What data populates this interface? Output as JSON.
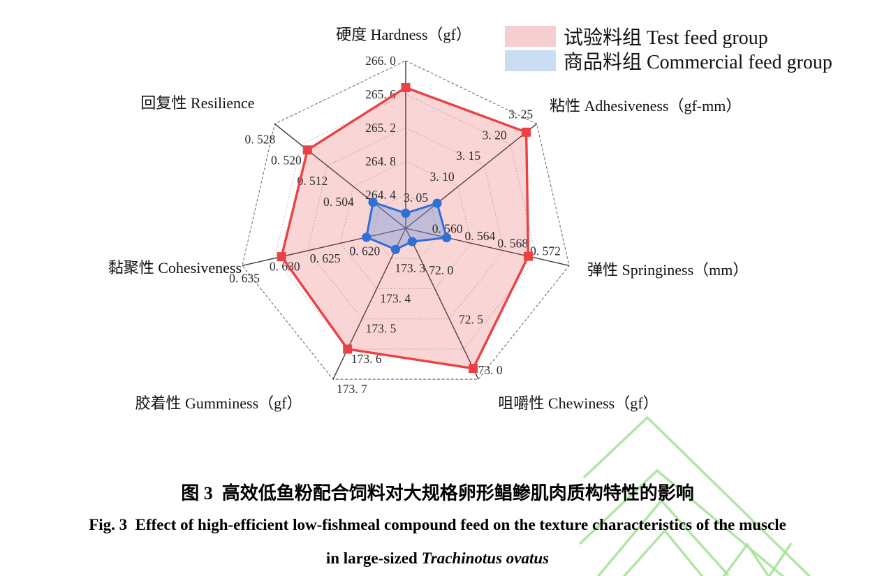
{
  "legend": {
    "position": "top-right",
    "items": [
      {
        "label": "试验料组 Test feed group",
        "color": "#f6ced0"
      },
      {
        "label": "商品料组 Commercial feed group",
        "color": "#cbddf3"
      }
    ]
  },
  "caption": {
    "line1_cn": "图 3  高效低鱼粉配合饲料对大规格卵形鲳鲹肌肉质构特性的影响",
    "line2_en": "Fig. 3  Effect of high-efficient low-fishmeal compound feed on the texture characteristics of the muscle",
    "line3_prefix": "in large-sized ",
    "line3_species": "Trachinotus ovatus"
  },
  "chart_data": {
    "type": "radar",
    "grid_on": true,
    "rings": 5,
    "center": [
      581,
      327
    ],
    "radius": 240,
    "legend_position": "top-right",
    "axes": [
      {
        "title": "硬度 Hardness（gf）",
        "angle_deg": 90,
        "min": 264.0,
        "max": 266.0,
        "tick_offset": [
          -36,
          0
        ],
        "ticks": [
          {
            "label": "264. 4",
            "ring": 1
          },
          {
            "label": "264. 8",
            "ring": 2
          },
          {
            "label": "265. 2",
            "ring": 3
          },
          {
            "label": "265. 6",
            "ring": 4
          },
          {
            "label": "266. 0",
            "ring": 5
          }
        ]
      },
      {
        "title": "粘性 Adhesiveness（gf-mm）",
        "angle_deg": 38.571,
        "min": 3.0,
        "max": 3.25,
        "tick_offset": [
          -23,
          -14
        ],
        "ticks": [
          {
            "label": "3. 05",
            "ring": 1
          },
          {
            "label": "3. 10",
            "ring": 2
          },
          {
            "label": "3. 15",
            "ring": 3
          },
          {
            "label": "3. 20",
            "ring": 4
          },
          {
            "label": "3. 25",
            "ring": 5
          }
        ]
      },
      {
        "title": "弹性 Springiness（mm）",
        "angle_deg": -12.857,
        "min": 0.552,
        "max": 0.572,
        "tick_offset": [
          -34,
          -21
        ],
        "ticks": [
          {
            "label": "0. 560",
            "ring": 2
          },
          {
            "label": "0. 564",
            "ring": 3
          },
          {
            "label": "0. 568",
            "ring": 4
          },
          {
            "label": "0. 572",
            "ring": 5
          }
        ]
      },
      {
        "title": "咀嚼性 Chewiness（gf）",
        "angle_deg": -64.286,
        "min": 71.75,
        "max": 73.0,
        "tick_offset": [
          30,
          10
        ],
        "ticks": [
          {
            "label": "72. 0",
            "ring": 1,
            "offset": [
              30,
              17
            ]
          },
          {
            "label": "72. 5",
            "ring": 3,
            "offset": [
              31,
              1
            ]
          },
          {
            "label": "73. 0",
            "ring": 5,
            "offset": [
              17,
              -13
            ]
          }
        ]
      },
      {
        "title": "胶着性 Gumminess（gf）",
        "angle_deg": -115.714,
        "min": 173.2,
        "max": 173.7,
        "tick_offset": [
          27,
          14
        ],
        "ticks": [
          {
            "label": "173. 3",
            "ring": 1
          },
          {
            "label": "173. 4",
            "ring": 2
          },
          {
            "label": "173. 5",
            "ring": 3
          },
          {
            "label": "173. 6",
            "ring": 4
          },
          {
            "label": "173. 7",
            "ring": 5
          }
        ]
      },
      {
        "title": "黏聚性 Cohesiveness",
        "angle_deg": -167.143,
        "min": 0.61,
        "max": 0.635,
        "tick_offset": [
          20,
          13
        ],
        "ticks": [
          {
            "label": "0. 620",
            "ring": 2,
            "offset": [
              35,
              11
            ]
          },
          {
            "label": "0. 625",
            "ring": 3,
            "offset": [
              25,
              11
            ]
          },
          {
            "label": "0. 630",
            "ring": 4,
            "offset": [
              14,
              12
            ]
          },
          {
            "label": "0. 635",
            "ring": 5,
            "offset": [
              3,
              18
            ]
          }
        ]
      },
      {
        "title": "回复性 Resilience",
        "angle_deg": 141.429,
        "min": 0.488,
        "max": 0.528,
        "tick_offset": [
          -21,
          22
        ],
        "ticks": [
          {
            "label": "0. 504",
            "ring": 2
          },
          {
            "label": "0. 512",
            "ring": 3
          },
          {
            "label": "0. 520",
            "ring": 4
          },
          {
            "label": "0. 528",
            "ring": 5
          }
        ]
      }
    ],
    "series": [
      {
        "name": "试验料组 Test feed group",
        "color": "#e94144",
        "fill": "rgba(233,65,68,0.22)",
        "marker": "square",
        "values": [
          265.68,
          3.23,
          0.567,
          72.91,
          173.6,
          0.629,
          0.518
        ]
      },
      {
        "name": "商品料组 Commercial feed group",
        "color": "#2e6fd8",
        "fill": "rgba(100,150,220,0.38)",
        "marker": "circle",
        "values": [
          264.18,
          3.06,
          0.557,
          71.86,
          173.27,
          0.616,
          0.498
        ]
      }
    ]
  }
}
